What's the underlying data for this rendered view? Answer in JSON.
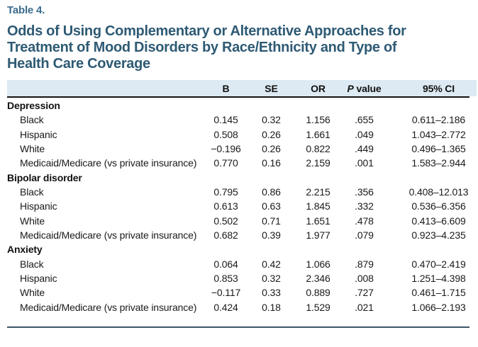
{
  "table_label": "Table 4.",
  "title": {
    "line1": "Odds of Using Complementary or Alternative Approaches for",
    "line2": "Treatment of Mood Disorders by Race/Ethnicity and Type of",
    "line3": "Health Care Coverage"
  },
  "colors": {
    "title_accent": "#2E5A74",
    "table_label_accent": "#3C6D8E",
    "header_band": "#DDEAF3",
    "header_rule": "#141414",
    "bottom_rule": "#3E5566"
  },
  "table": {
    "columns": {
      "b": "B",
      "se": "SE",
      "or": "OR",
      "p_italic": "P",
      "p_rest": " value",
      "ci": "95% CI"
    },
    "sections": [
      {
        "label": "Depression",
        "rows": [
          {
            "label": "Black",
            "b": "0.145",
            "se": "0.32",
            "or": "1.156",
            "p": ".655",
            "ci": "0.611–2.186"
          },
          {
            "label": "Hispanic",
            "b": "0.508",
            "se": "0.26",
            "or": "1.661",
            "p": ".049",
            "ci": "1.043–2.772"
          },
          {
            "label": "White",
            "b": "−0.196",
            "se": "0.26",
            "or": "0.822",
            "p": ".449",
            "ci": "0.496–1.365"
          },
          {
            "label": "Medicaid/Medicare (vs private insurance)",
            "b": "0.770",
            "se": "0.16",
            "or": "2.159",
            "p": ".001",
            "ci": "1.583–2.944"
          }
        ]
      },
      {
        "label": "Bipolar disorder",
        "rows": [
          {
            "label": "Black",
            "b": "0.795",
            "se": "0.86",
            "or": "2.215",
            "p": ".356",
            "ci": "0.408–12.013"
          },
          {
            "label": "Hispanic",
            "b": "0.613",
            "se": "0.63",
            "or": "1.845",
            "p": ".332",
            "ci": "0.536–6.356"
          },
          {
            "label": "White",
            "b": "0.502",
            "se": "0.71",
            "or": "1.651",
            "p": ".478",
            "ci": "0.413–6.609"
          },
          {
            "label": "Medicaid/Medicare (vs private insurance)",
            "b": "0.682",
            "se": "0.39",
            "or": "1.977",
            "p": ".079",
            "ci": "0.923–4.235"
          }
        ]
      },
      {
        "label": "Anxiety",
        "rows": [
          {
            "label": "Black",
            "b": "0.064",
            "se": "0.42",
            "or": "1.066",
            "p": ".879",
            "ci": "0.470–2.419"
          },
          {
            "label": "Hispanic",
            "b": "0.853",
            "se": "0.32",
            "or": "2.346",
            "p": ".008",
            "ci": "1.251–4.398"
          },
          {
            "label": "White",
            "b": "−0.117",
            "se": "0.33",
            "or": "0.889",
            "p": ".727",
            "ci": "0.461–1.715"
          },
          {
            "label": "Medicaid/Medicare (vs private insurance)",
            "b": "0.424",
            "se": "0.18",
            "or": "1.529",
            "p": ".021",
            "ci": "1.066–2.193"
          }
        ]
      }
    ]
  }
}
